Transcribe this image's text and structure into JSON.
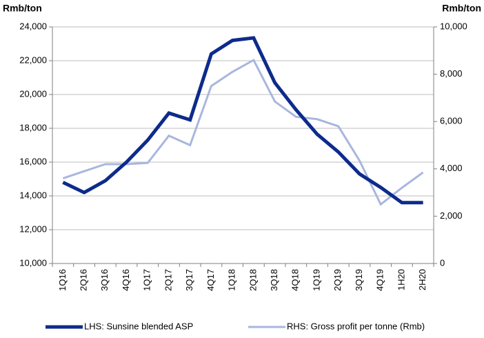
{
  "chart_data": {
    "type": "line",
    "y_label": "Rmb/ton",
    "y2_label": "Rmb/ton",
    "categories": [
      "1Q16",
      "2Q16",
      "3Q16",
      "4Q16",
      "1Q17",
      "2Q17",
      "3Q17",
      "4Q17",
      "1Q18",
      "2Q18",
      "3Q18",
      "4Q18",
      "1Q19",
      "2Q19",
      "3Q19",
      "4Q19",
      "1H20",
      "2H20"
    ],
    "series": [
      {
        "name": "LHS: Sunsine blended ASP",
        "color": "#0d2b8c",
        "width": 5,
        "values": [
          14800,
          14200,
          14900,
          16000,
          17300,
          18900,
          18500,
          22400,
          23200,
          23350,
          20700,
          19100,
          17650,
          16600,
          15300,
          14500,
          13600,
          13600
        ]
      },
      {
        "name": "RHS: Gross profit per tonne (Rmb)",
        "color": "#a9b6de",
        "width": 3,
        "axis": "y2",
        "values": [
          3600,
          3900,
          4200,
          4200,
          4250,
          5400,
          5000,
          7500,
          8100,
          8600,
          6850,
          6200,
          6100,
          5800,
          4350,
          2500,
          3200,
          3850
        ]
      }
    ],
    "ylim": [
      10000,
      24000
    ],
    "yticks": [
      {
        "value": 10000,
        "label": "10,000"
      },
      {
        "value": 12000,
        "label": "12,000"
      },
      {
        "value": 14000,
        "label": "14,000"
      },
      {
        "value": 16000,
        "label": "16,000"
      },
      {
        "value": 18000,
        "label": "18,000"
      },
      {
        "value": 20000,
        "label": "20,000"
      },
      {
        "value": 22000,
        "label": "22,000"
      },
      {
        "value": 24000,
        "label": "24,000"
      }
    ],
    "y2lim": [
      0,
      10000
    ],
    "y2ticks": [
      0,
      {
        "value": 2000,
        "label": "2,000"
      },
      {
        "value": 4000,
        "label": "4,000"
      },
      {
        "value": 6000,
        "label": "6,000"
      },
      {
        "value": 8000,
        "label": "8,000"
      },
      {
        "value": 10000,
        "label": "10,000"
      }
    ],
    "grid": true,
    "legend": "bottom"
  }
}
